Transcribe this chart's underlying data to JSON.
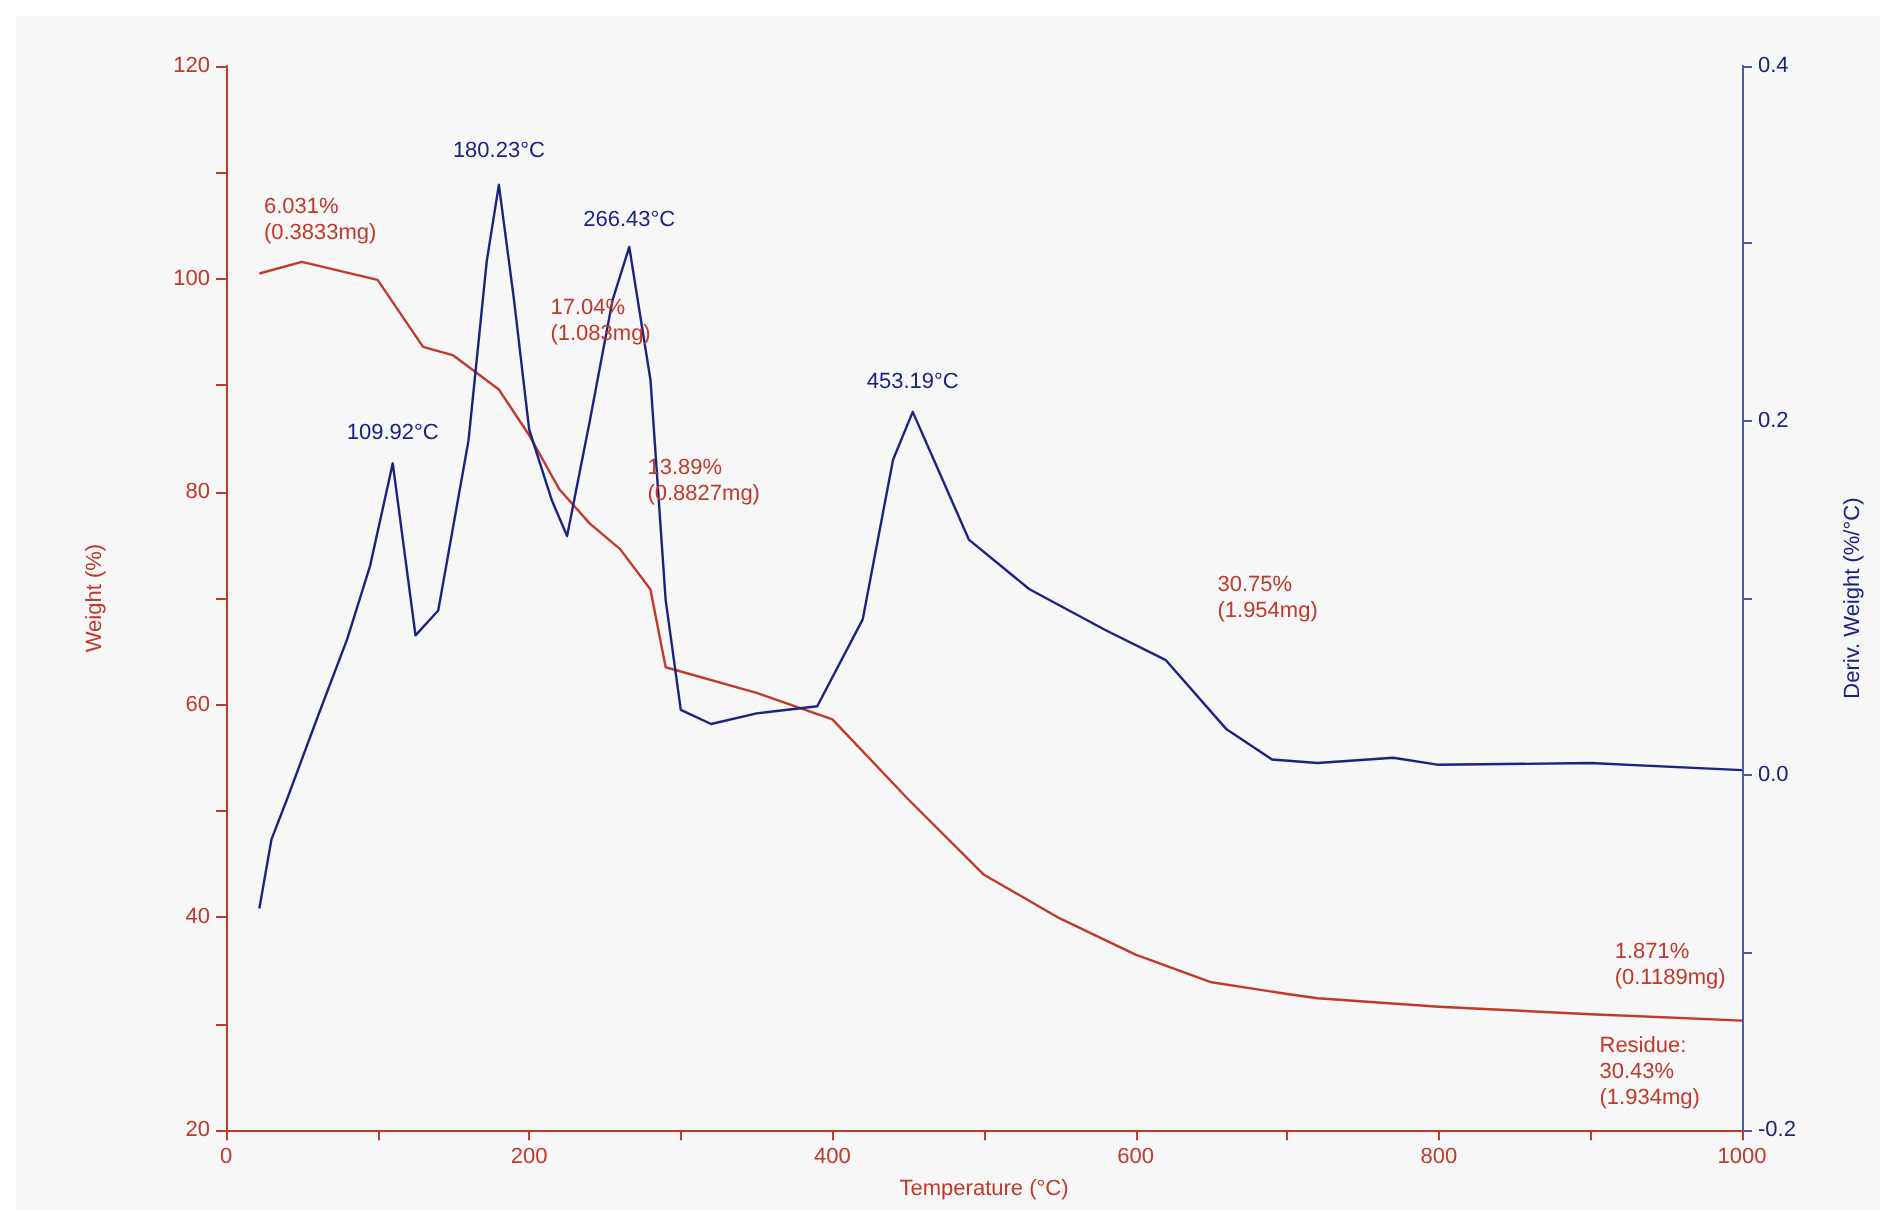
{
  "chart_data": {
    "type": "line",
    "xlabel": "Temperature (°C)",
    "ylabel": "Weight (%)",
    "y2label": "Deriv. Weight (%/°C)",
    "xlim": [
      0,
      1000
    ],
    "xticks": [
      0,
      {
        "value": 100,
        "label": null
      },
      200,
      {
        "value": 300,
        "label": null
      },
      400,
      {
        "value": 500,
        "label": null
      },
      600,
      {
        "value": 700,
        "label": null
      },
      800,
      {
        "value": 900,
        "label": null
      },
      1000
    ],
    "ylim": [
      20,
      120
    ],
    "yticks": [
      20,
      {
        "value": 30,
        "label": null
      },
      40,
      {
        "value": 50,
        "label": null
      },
      60,
      {
        "value": 70,
        "label": null
      },
      80,
      {
        "value": 90,
        "label": null
      },
      100,
      {
        "value": 110,
        "label": null
      },
      120
    ],
    "y2lim": [
      -0.2,
      0.4
    ],
    "y2ticks": [
      -0.2,
      {
        "value": -0.1,
        "label": null
      },
      {
        "value": 0,
        "label": "0.0"
      },
      {
        "value": 0.1,
        "label": null
      },
      0.2,
      {
        "value": 0.3,
        "label": null
      },
      0.4
    ],
    "grid": false,
    "marker": "none",
    "line_style": "solid",
    "series": [
      {
        "color": "#c0392b",
        "x": [
          22,
          50,
          100,
          130,
          150,
          180,
          200,
          220,
          240,
          260,
          280,
          290,
          350,
          400,
          450,
          500,
          550,
          600,
          650,
          700,
          720,
          800,
          900,
          1000
        ],
        "values": [
          100.5,
          101.6,
          99.9,
          93.6,
          92.8,
          89.6,
          85.3,
          80.2,
          77,
          74.6,
          70.8,
          63.5,
          61.1,
          58.6,
          51.1,
          44,
          39.9,
          36.5,
          33.9,
          32.8,
          32.4,
          31.6,
          30.9,
          30.3
        ]
      },
      {
        "color": "#1a237e",
        "axis": "y2",
        "x": [
          22,
          30,
          40,
          60,
          80,
          95,
          110,
          125,
          140,
          160,
          172,
          180,
          190,
          200,
          215,
          225,
          240,
          255,
          266,
          280,
          290,
          300,
          320,
          350,
          390,
          420,
          440,
          453,
          470,
          490,
          530,
          580,
          620,
          660,
          690,
          720,
          770,
          800,
          900,
          1000
        ],
        "values": [
          -0.075,
          -0.036,
          -0.014,
          0.032,
          0.077,
          0.118,
          0.176,
          0.079,
          0.093,
          0.189,
          0.29,
          0.333,
          0.268,
          0.195,
          0.155,
          0.135,
          0.2,
          0.268,
          0.298,
          0.223,
          0.099,
          0.037,
          0.029,
          0.035,
          0.039,
          0.088,
          0.178,
          0.205,
          0.172,
          0.133,
          0.105,
          0.082,
          0.065,
          0.026,
          0.009,
          0.007,
          0.01,
          0.006,
          0.007,
          0.003
        ]
      }
    ],
    "annotations": [
      "109.92°C",
      "180.23°C",
      "266.43°C",
      "453.19°C",
      "6.031%\n(0.3833mg)",
      "17.04%\n(1.083mg)",
      "13.89%\n(0.8827mg)",
      "30.75%\n(1.954mg)",
      "1.871%\n(0.1189mg)",
      "Residue:\n30.43%\n(1.934mg)"
    ]
  }
}
